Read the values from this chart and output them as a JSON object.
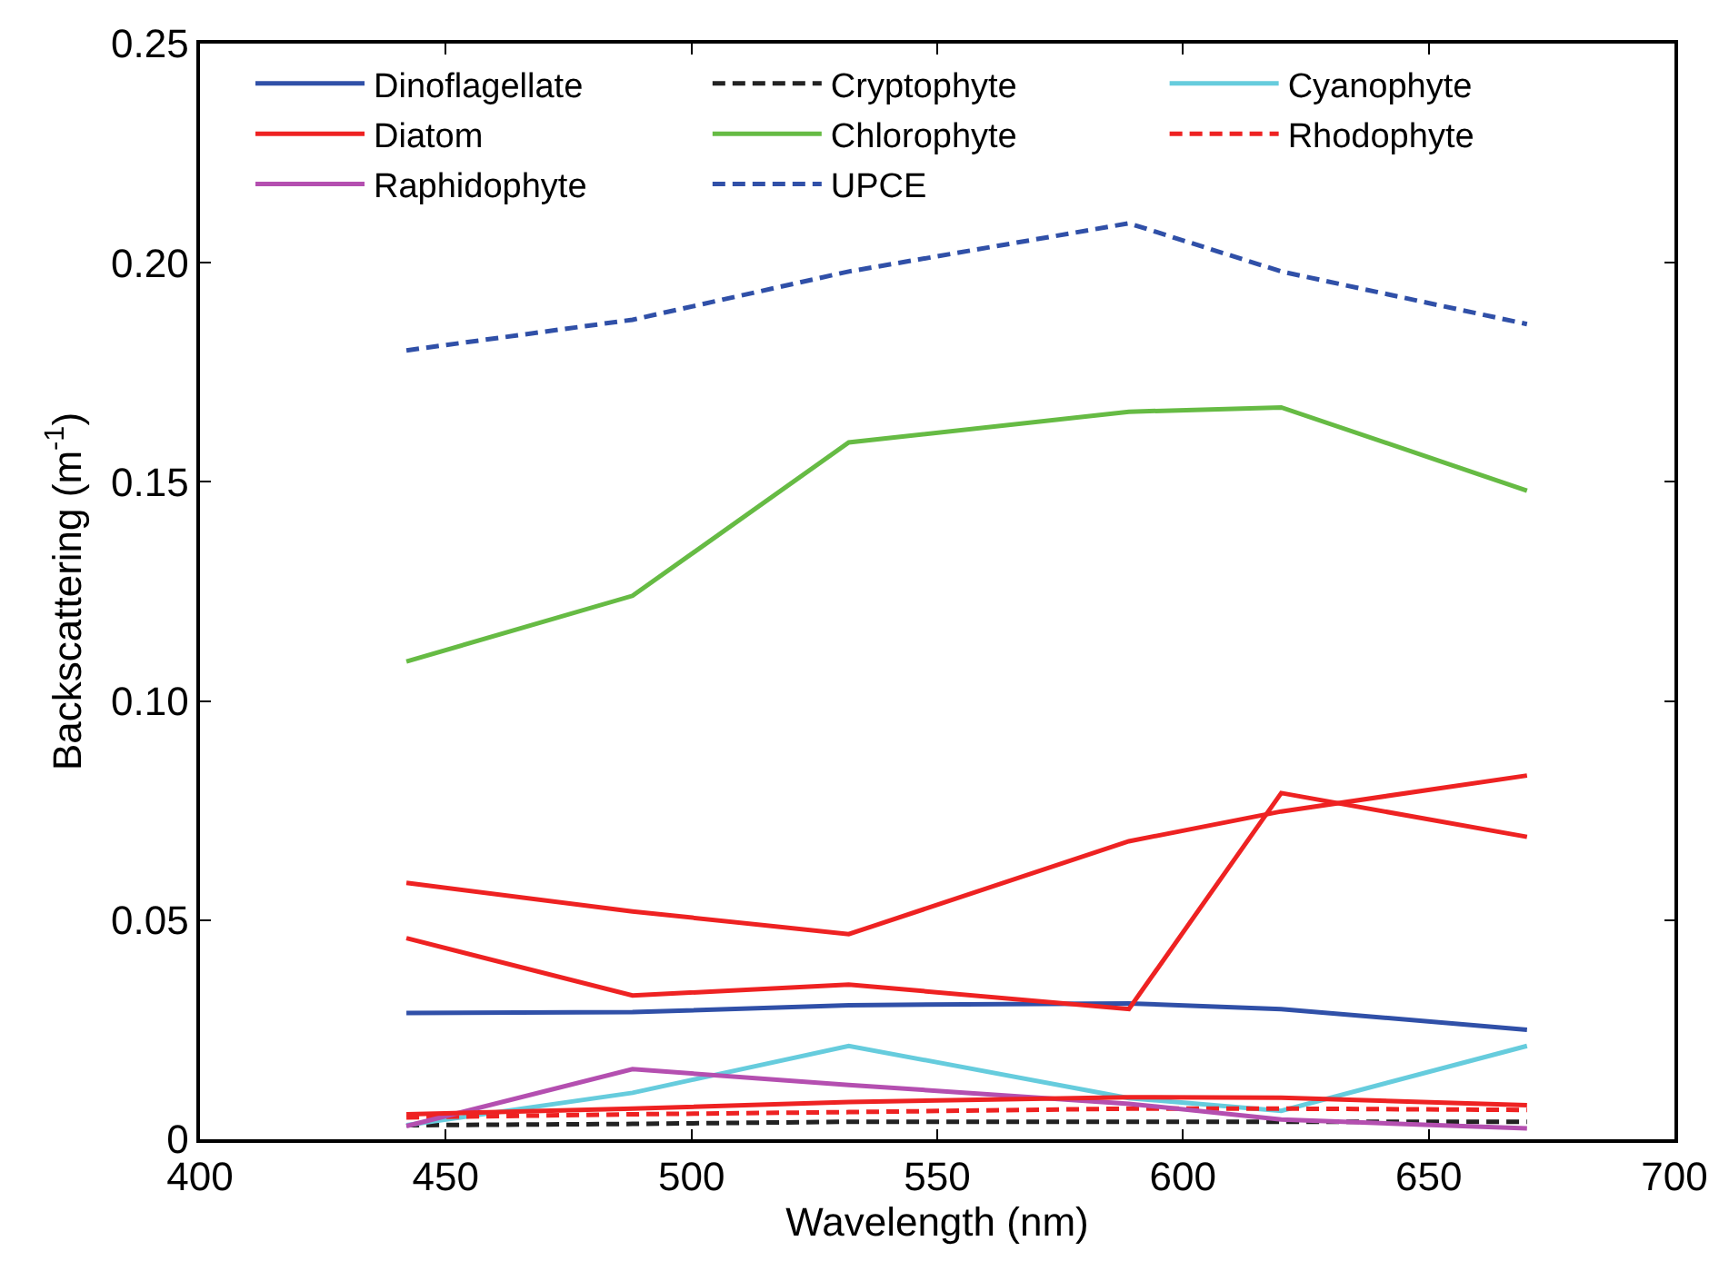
{
  "chart_data": {
    "type": "line",
    "xlabel": "Wavelength (nm)",
    "ylabel": "Backscattering (m$^{-1}$)",
    "x": [
      442,
      488,
      532,
      589,
      620,
      670
    ],
    "xlim": [
      400,
      700
    ],
    "xticks": [
      400,
      450,
      500,
      550,
      600,
      650,
      700
    ],
    "ylim": [
      0,
      0.25
    ],
    "yticks": [
      0,
      0.05,
      {
        "value": 0.1,
        "label": "0.10"
      },
      0.15,
      {
        "value": 0.2,
        "label": "0.20"
      },
      0.25
    ],
    "grid": false,
    "legend": "top",
    "marker": "none",
    "series": [
      {
        "name": "Dinoflagellate",
        "color": "#3050a8",
        "line_style": "solid",
        "values": [
          0.0288,
          0.029,
          0.0306,
          0.031,
          0.0297,
          0.025
        ]
      },
      {
        "name": "Cryptophyte",
        "color": "#222222",
        "line_style": "dashed",
        "values": [
          0.0032,
          0.0035,
          0.004,
          0.004,
          0.004,
          0.004
        ]
      },
      {
        "name": "Cyanophyte",
        "color": "#66ccdd",
        "line_style": "solid",
        "values": [
          0.0032,
          0.0106,
          0.0213,
          0.0094,
          0.0065,
          0.0213
        ]
      },
      {
        "name": "Diatom",
        "color": "#ee2222",
        "line_style": "solid",
        "values": [
          0.0585,
          0.052,
          0.0468,
          0.068,
          0.0748,
          0.083
        ]
      },
      {
        "name": "Chlorophyte",
        "color": "#66bb44",
        "line_style": "solid",
        "values": [
          0.109,
          0.124,
          0.159,
          0.166,
          0.167,
          0.148
        ]
      },
      {
        "name": "Rhodophyte",
        "color": "#ee2222",
        "line_style": "dashed",
        "values": [
          0.005,
          0.0057,
          0.0062,
          0.007,
          0.007,
          0.0067
        ]
      },
      {
        "name": "Raphidophyte",
        "color": "#b44fb0",
        "line_style": "solid",
        "values": [
          0.003,
          0.016,
          0.0124,
          0.0081,
          0.0045,
          0.0025
        ]
      },
      {
        "name": "UPCE",
        "color": "#3050a8",
        "line_style": "dashed",
        "values": [
          0.18,
          0.187,
          0.198,
          0.209,
          0.198,
          0.186
        ]
      },
      {
        "color": "#ee2222",
        "line_style": "solid",
        "values": [
          0.0459,
          0.0328,
          0.0353,
          0.0297,
          0.079,
          0.069
        ]
      },
      {
        "color": "#ee2222",
        "line_style": "solid",
        "values": [
          0.0057,
          0.007,
          0.0085,
          0.0096,
          0.0095,
          0.0078
        ]
      }
    ]
  }
}
